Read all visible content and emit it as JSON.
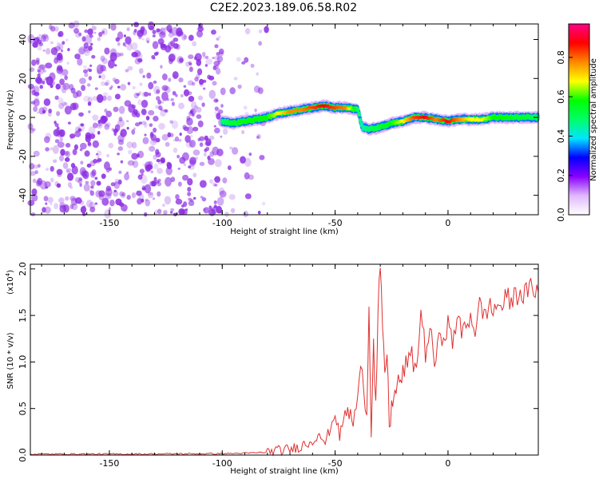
{
  "title": "C2E2.2023.189.06.58.R02",
  "colors": {
    "snr_line": "#e03030",
    "noise_purple": "#8a2be2",
    "colorbar_stops": [
      "#ffffff",
      "#e0b8ff",
      "#8a00ff",
      "#0000ff",
      "#00e5ff",
      "#00ff66",
      "#00ff00",
      "#ffff00",
      "#ff8800",
      "#ff0000",
      "#ff0088"
    ]
  },
  "chart_data": [
    {
      "type": "heatmap",
      "name_hint": "spectrogram",
      "xlabel": "Height of straight line (km)",
      "ylabel": "Frequency (Hz)",
      "xlim": [
        -185,
        40
      ],
      "ylim": [
        -50,
        48
      ],
      "xticks": [
        -150,
        -100,
        -50,
        0
      ],
      "yticks": [
        -40,
        -20,
        0,
        20,
        40
      ],
      "colorbar": {
        "label": "Normalized spectral amplitude",
        "range": [
          0,
          0.97
        ],
        "ticks": [
          0.0,
          0.2,
          0.4,
          0.6,
          0.8
        ]
      },
      "ridge": {
        "x": [
          -100,
          -95,
          -90,
          -85,
          -80,
          -75,
          -70,
          -65,
          -60,
          -55,
          -50,
          -45,
          -40,
          -38,
          -35,
          -30,
          -25,
          -20,
          -15,
          -10,
          -5,
          0,
          5,
          10,
          15,
          20,
          25,
          30,
          35,
          40
        ],
        "y": [
          -2,
          -3,
          -2,
          -1,
          0,
          2,
          3,
          4,
          5,
          6,
          5,
          5,
          4,
          -5,
          -6,
          -5,
          -3,
          -2,
          0,
          0,
          -1,
          -2,
          -1,
          -1,
          -1,
          0,
          0,
          0,
          0,
          0
        ],
        "amplitude": [
          0.5,
          0.55,
          0.6,
          0.6,
          0.6,
          0.7,
          0.8,
          0.8,
          0.85,
          0.9,
          0.85,
          0.8,
          0.5,
          0.45,
          0.5,
          0.55,
          0.6,
          0.7,
          0.85,
          0.9,
          0.8,
          0.9,
          0.8,
          0.7,
          0.7,
          0.6,
          0.6,
          0.55,
          0.55,
          0.5
        ]
      },
      "noise_region_x": [
        -185,
        -80
      ]
    },
    {
      "type": "line",
      "name_hint": "snr",
      "xlabel": "Height of straight line (km)",
      "ylabel": "SNR (10 * v/v)",
      "y_multiplier": "(x10",
      "y_multiplier_exp": "4",
      "y_multiplier_close": ")",
      "xlim": [
        -185,
        40
      ],
      "ylim": [
        0,
        2.05
      ],
      "xticks": [
        -150,
        -100,
        -50,
        0
      ],
      "yticks": [
        0.0,
        0.5,
        1.0,
        1.5,
        2.0
      ],
      "x": [
        -185,
        -150,
        -100,
        -90,
        -80,
        -70,
        -65,
        -60,
        -57,
        -55,
        -52,
        -50,
        -48,
        -45,
        -42,
        -40,
        -38,
        -36,
        -35,
        -34,
        -33,
        -32,
        -31,
        -30,
        -29,
        -28,
        -27,
        -26,
        -25,
        -24,
        -23,
        -22,
        -21,
        -20,
        -18,
        -16,
        -14,
        -12,
        -10,
        -8,
        -6,
        -4,
        -2,
        0,
        2,
        4,
        6,
        8,
        10,
        12,
        14,
        16,
        18,
        20,
        22,
        24,
        26,
        28,
        30,
        32,
        34,
        36,
        38,
        40
      ],
      "y": [
        0.01,
        0.01,
        0.015,
        0.02,
        0.03,
        0.06,
        0.1,
        0.15,
        0.25,
        0.1,
        0.3,
        0.45,
        0.2,
        0.5,
        0.35,
        0.6,
        1.0,
        0.4,
        1.62,
        0.3,
        1.2,
        0.5,
        1.5,
        2.05,
        1.3,
        0.9,
        1.1,
        0.3,
        0.5,
        0.7,
        0.6,
        0.9,
        0.7,
        0.9,
        1.0,
        1.05,
        0.9,
        1.55,
        1.1,
        1.35,
        1.0,
        1.2,
        1.3,
        1.4,
        1.2,
        1.5,
        1.3,
        1.4,
        1.5,
        1.35,
        1.6,
        1.5,
        1.6,
        1.55,
        1.62,
        1.6,
        1.7,
        1.65,
        1.72,
        1.75,
        1.72,
        1.78,
        1.8,
        1.75
      ]
    }
  ]
}
